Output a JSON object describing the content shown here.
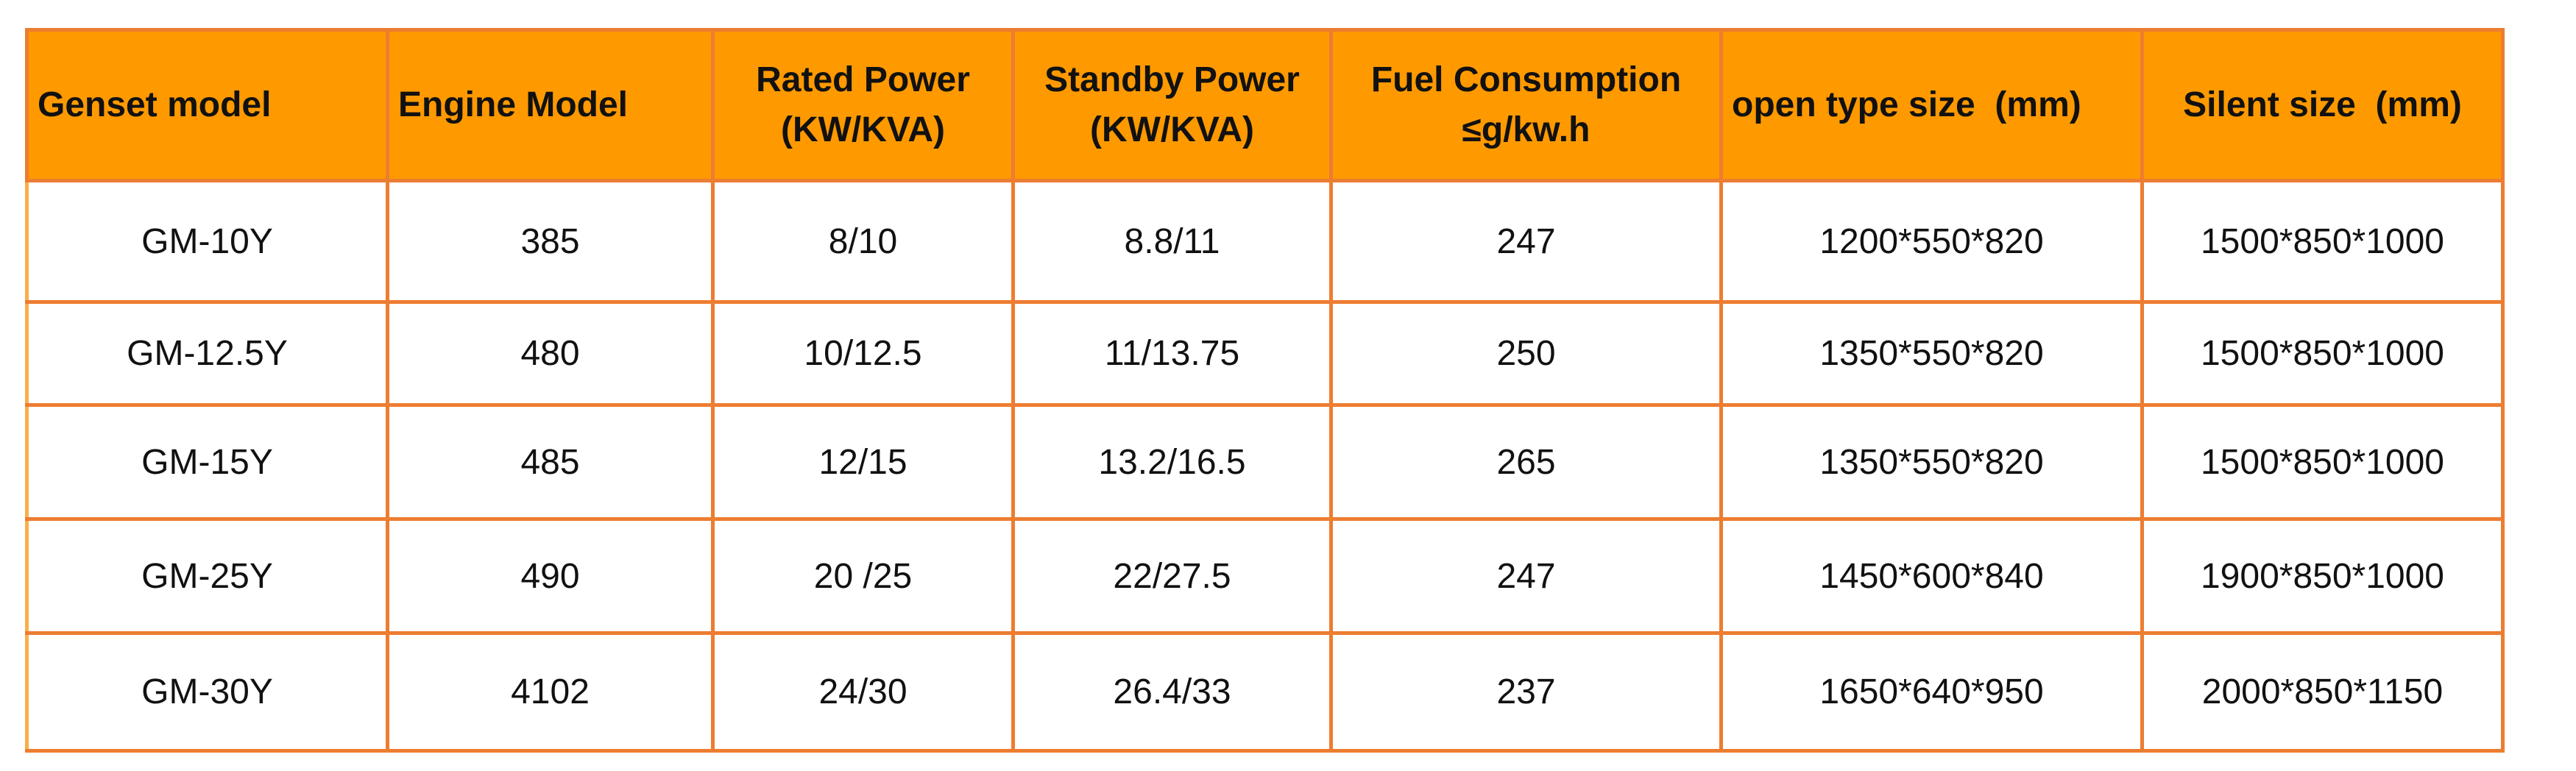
{
  "table": {
    "headers": [
      {
        "lines": [
          "Genset model"
        ],
        "align": "left"
      },
      {
        "lines": [
          "Engine Model"
        ],
        "align": "left"
      },
      {
        "lines": [
          "Rated Power",
          "(KW/KVA)"
        ],
        "align": "center"
      },
      {
        "lines": [
          "Standby Power",
          "(KW/KVA)"
        ],
        "align": "center"
      },
      {
        "lines": [
          "Fuel Consumption",
          "≤g/kw.h"
        ],
        "align": "center"
      },
      {
        "lines": [
          "open type size  (mm)"
        ],
        "align": "left"
      },
      {
        "lines": [
          "Silent size  (mm)"
        ],
        "align": "center"
      }
    ],
    "rows": [
      [
        "GM-10Y",
        "385",
        "8/10",
        "8.8/11",
        "247",
        "1200*550*820",
        "1500*850*1000"
      ],
      [
        "GM-12.5Y",
        "480",
        "10/12.5",
        "11/13.75",
        "250",
        "1350*550*820",
        "1500*850*1000"
      ],
      [
        "GM-15Y",
        "485",
        "12/15",
        "13.2/16.5",
        "265",
        "1350*550*820",
        "1500*850*1000"
      ],
      [
        "GM-25Y",
        "490",
        "20 /25",
        "22/27.5",
        "247",
        "1450*600*840",
        "1900*850*1000"
      ],
      [
        "GM-30Y",
        "4102",
        "24/30",
        "26.4/33",
        "237",
        "1650*640*950",
        "2000*850*1150"
      ]
    ]
  },
  "colors": {
    "header_fill": "#FF9900",
    "border": "#ED7D31",
    "text": "#111111"
  }
}
